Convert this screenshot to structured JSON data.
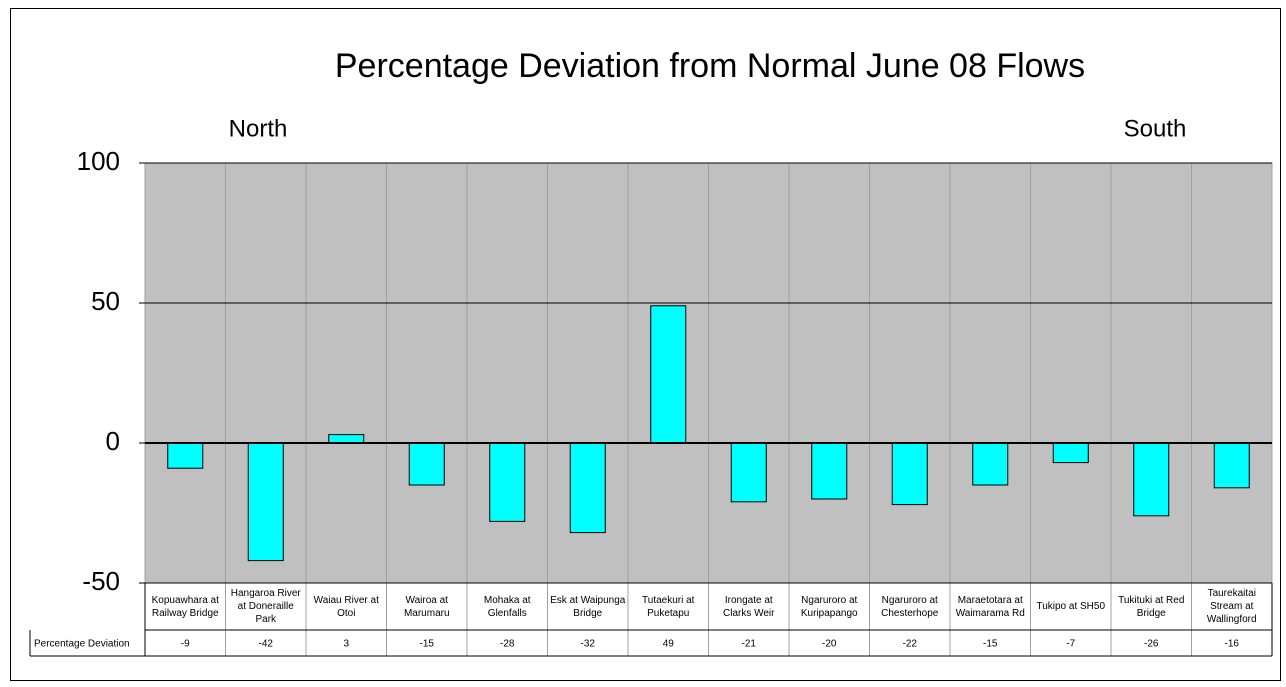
{
  "chart_data": {
    "type": "bar",
    "title": "Percentage Deviation from Normal June 08 Flows",
    "annotations": [
      "North",
      "South"
    ],
    "categories": [
      "Kopuawhara at Railway Bridge",
      "Hangaroa River at Doneraille Park",
      "Waiau River at Otoi",
      "Wairoa at Marumaru",
      "Mohaka at Glenfalls",
      "Esk at Waipunga Bridge",
      "Tutaekuri at Puketapu",
      "Irongate at Clarks Weir",
      "Ngaruroro at Kuripapango",
      "Ngaruroro at Chesterhope",
      "Maraetotara at Waimarama Rd",
      "Tukipo at SH50",
      "Tukituki at Red Bridge",
      "Taurekaitai Stream at Wallingford"
    ],
    "series": [
      {
        "name": "Percentage Deviation",
        "color": "#00ffff",
        "values": [
          -9,
          -42,
          3,
          -15,
          -28,
          -32,
          49,
          -21,
          -20,
          -22,
          -15,
          -7,
          -26,
          -16
        ]
      }
    ],
    "ylim": [
      -50,
      100
    ],
    "yticks": [
      -50,
      0,
      50,
      100
    ],
    "grid": true,
    "plot_background": "#c0c0c0"
  }
}
